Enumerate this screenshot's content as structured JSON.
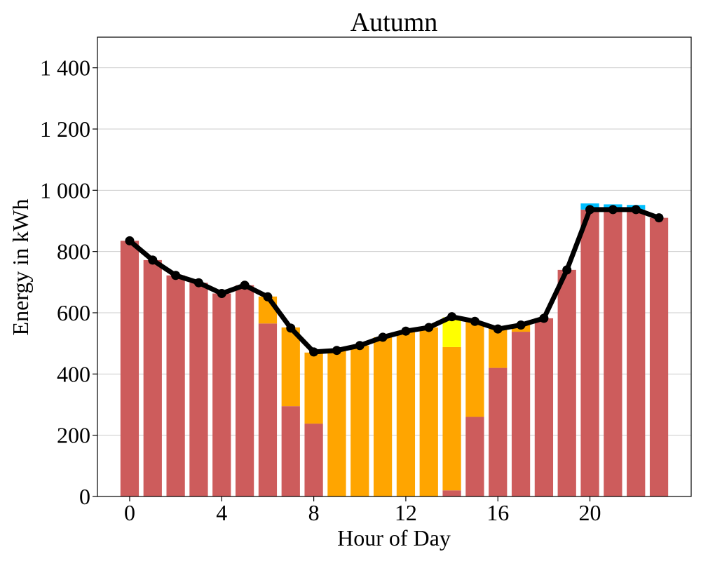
{
  "chart_data": {
    "type": "bar",
    "title": "Autumn",
    "xlabel": "Hour of Day",
    "ylabel": "Energy in kWh",
    "ylim": [
      0,
      1500
    ],
    "xlim": [
      -1.4,
      24.4
    ],
    "grid": "y",
    "x": [
      0,
      1,
      2,
      3,
      4,
      5,
      6,
      7,
      8,
      9,
      10,
      11,
      12,
      13,
      14,
      15,
      16,
      17,
      18,
      19,
      20,
      21,
      22,
      23
    ],
    "x_ticks": [
      0,
      4,
      8,
      12,
      16,
      20
    ],
    "x_tick_labels": [
      "0",
      "4",
      "8",
      "12",
      "16",
      "20"
    ],
    "y_ticks": [
      0,
      200,
      400,
      600,
      800,
      1000,
      1200,
      1400
    ],
    "y_tick_labels": [
      "0",
      "200",
      "400",
      "600",
      "800",
      "1 000",
      "1 200",
      "1 400"
    ],
    "stacked_series": [
      {
        "color": "#cd5c5c",
        "values": [
          835,
          772,
          722,
          698,
          663,
          690,
          565,
          295,
          238,
          0,
          0,
          0,
          0,
          0,
          20,
          260,
          420,
          538,
          582,
          740,
          937,
          937,
          937,
          910
        ]
      },
      {
        "color": "#ffa500",
        "values": [
          0,
          0,
          0,
          0,
          0,
          0,
          88,
          257,
          232,
          477,
          493,
          520,
          540,
          552,
          468,
          310,
          130,
          22,
          0,
          0,
          0,
          0,
          0,
          0
        ]
      },
      {
        "color": "#ffff00",
        "values": [
          0,
          0,
          0,
          0,
          0,
          0,
          0,
          0,
          0,
          0,
          0,
          0,
          0,
          0,
          97,
          0,
          0,
          0,
          0,
          0,
          0,
          0,
          0,
          0
        ]
      },
      {
        "color": "#00bfff",
        "values": [
          0,
          0,
          0,
          0,
          0,
          0,
          0,
          0,
          0,
          0,
          0,
          0,
          0,
          0,
          0,
          0,
          0,
          0,
          0,
          0,
          20,
          17,
          15,
          0
        ]
      }
    ],
    "line_series": {
      "color": "#000000",
      "values": [
        835,
        772,
        722,
        698,
        663,
        690,
        652,
        550,
        472,
        477,
        493,
        520,
        540,
        552,
        587,
        572,
        547,
        560,
        582,
        740,
        937,
        937,
        937,
        910
      ]
    }
  }
}
